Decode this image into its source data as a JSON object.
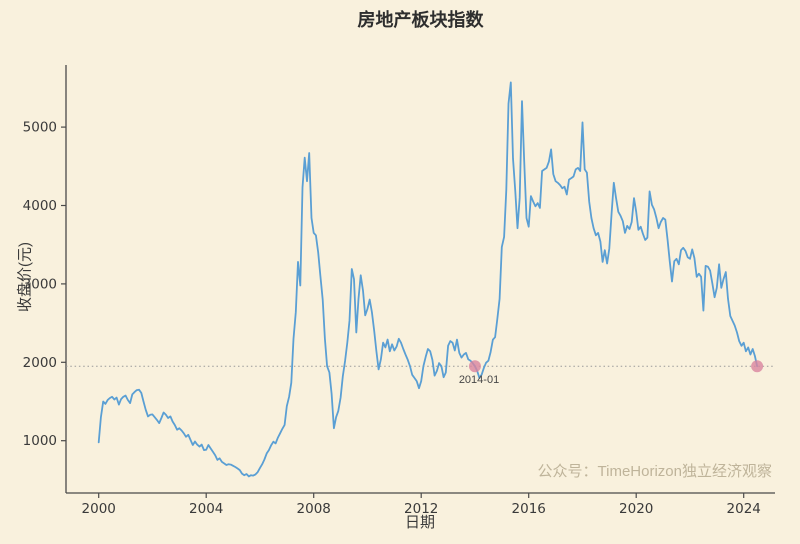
{
  "figure": {
    "watermark": "公众号：TimeHorizon独立经济观察"
  },
  "chart_data": {
    "type": "line",
    "title": "房地产板块指数",
    "xlabel": "日期",
    "ylabel": "收盘价(元)",
    "x_ticks": [
      2000,
      2004,
      2008,
      2012,
      2016,
      2020,
      2024
    ],
    "y_ticks": [
      1000,
      2000,
      3000,
      4000,
      5000
    ],
    "x_range": [
      1998.8,
      2025.2
    ],
    "y_range": [
      330,
      5790
    ],
    "grid": false,
    "legend_position": "none",
    "background_color": "#f9f1dd",
    "line_color": "#5a9fd4",
    "axis_color": "#4a4a4a",
    "reference_line": {
      "value": 1950,
      "style": "dotted",
      "color": "#999999"
    },
    "markers": [
      {
        "year": 2014.0,
        "value": 1950,
        "label": "2014-01",
        "color": "#d9849f"
      },
      {
        "year": 2024.5,
        "value": 1950,
        "label": "",
        "color": "#d9849f"
      }
    ],
    "series": [
      {
        "name": "收盘价",
        "start_year": 2000,
        "points_per_year": 12,
        "values": [
          980,
          1300,
          1500,
          1470,
          1520,
          1545,
          1560,
          1525,
          1550,
          1460,
          1530,
          1560,
          1575,
          1520,
          1480,
          1590,
          1620,
          1645,
          1650,
          1610,
          1500,
          1395,
          1310,
          1330,
          1335,
          1300,
          1265,
          1225,
          1290,
          1360,
          1330,
          1290,
          1310,
          1245,
          1200,
          1140,
          1160,
          1130,
          1095,
          1050,
          1075,
          1010,
          945,
          990,
          950,
          925,
          950,
          880,
          885,
          945,
          900,
          860,
          815,
          755,
          775,
          730,
          710,
          690,
          700,
          695,
          680,
          665,
          645,
          625,
          580,
          560,
          575,
          545,
          560,
          555,
          570,
          600,
          650,
          700,
          760,
          838,
          880,
          940,
          987,
          966,
          1040,
          1095,
          1150,
          1202,
          1440,
          1560,
          1740,
          2300,
          2640,
          3280,
          2980,
          4230,
          4610,
          4310,
          4670,
          3840,
          3650,
          3620,
          3400,
          3100,
          2800,
          2300,
          1950,
          1870,
          1600,
          1160,
          1300,
          1380,
          1550,
          1820,
          2020,
          2250,
          2530,
          3190,
          3060,
          2380,
          2810,
          3110,
          2915,
          2600,
          2680,
          2800,
          2640,
          2400,
          2140,
          1910,
          2040,
          2250,
          2190,
          2290,
          2140,
          2230,
          2150,
          2200,
          2300,
          2250,
          2170,
          2100,
          2030,
          1950,
          1840,
          1800,
          1760,
          1670,
          1760,
          1950,
          2070,
          2170,
          2140,
          2030,
          1830,
          1890,
          1990,
          1950,
          1810,
          1870,
          2210,
          2270,
          2250,
          2150,
          2290,
          2120,
          2060,
          2100,
          2120,
          2040,
          2020,
          1990,
          1950,
          1890,
          1800,
          1845,
          1930,
          1995,
          2020,
          2130,
          2290,
          2320,
          2550,
          2810,
          3470,
          3600,
          4200,
          5300,
          5570,
          4600,
          4180,
          3710,
          4100,
          5330,
          4565,
          3840,
          3730,
          4120,
          4050,
          3990,
          4030,
          3970,
          4440,
          4460,
          4480,
          4560,
          4715,
          4400,
          4310,
          4290,
          4260,
          4220,
          4240,
          4140,
          4330,
          4350,
          4370,
          4460,
          4480,
          4440,
          5060,
          4460,
          4420,
          4050,
          3840,
          3710,
          3620,
          3650,
          3540,
          3280,
          3430,
          3260,
          3450,
          3900,
          4290,
          4100,
          3920,
          3870,
          3800,
          3650,
          3740,
          3700,
          3790,
          4094,
          3920,
          3690,
          3730,
          3640,
          3560,
          3590,
          4180,
          4010,
          3950,
          3840,
          3710,
          3790,
          3840,
          3820,
          3560,
          3280,
          3030,
          3290,
          3320,
          3250,
          3430,
          3460,
          3420,
          3340,
          3320,
          3440,
          3330,
          3090,
          3130,
          3090,
          2660,
          3230,
          3220,
          3170,
          3010,
          2830,
          2950,
          3250,
          2950,
          3060,
          3150,
          2810,
          2590,
          2530,
          2470,
          2380,
          2270,
          2210,
          2250,
          2140,
          2190,
          2100,
          2170,
          2080,
          1950
        ]
      }
    ]
  }
}
